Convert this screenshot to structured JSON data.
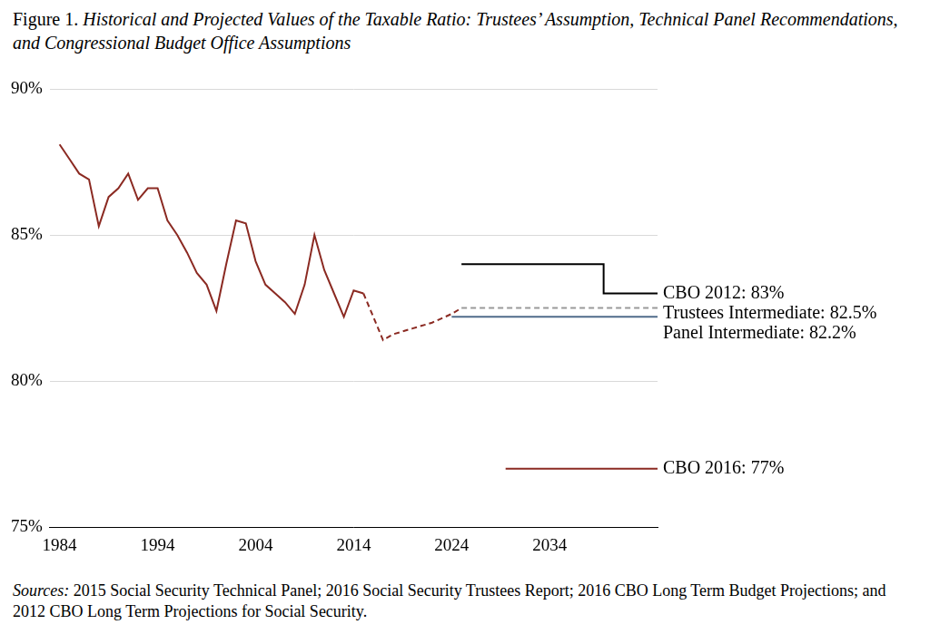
{
  "chart_data": {
    "type": "line",
    "figure_label": "Figure 1.",
    "title": "Historical and Projected Values of the Taxable Ratio: Trustees’ Assumption, Technical Panel Recommendations, and Congressional Budget Office Assumptions",
    "source_label": "Sources:",
    "source": "2015 Social Security Technical Panel; 2016 Social Security Trustees Report; 2016 CBO Long Term Budget Projections; and 2012 CBO Long Term Projections for Social Security.",
    "xlim": [
      1983,
      2045
    ],
    "xticks": [
      1984,
      1994,
      2004,
      2014,
      2024,
      2034
    ],
    "ylim": [
      75,
      90
    ],
    "yticks": [
      {
        "value": 75,
        "label": "75%"
      },
      {
        "value": 80,
        "label": "80%"
      },
      {
        "value": 85,
        "label": "85%"
      },
      {
        "value": 90,
        "label": "90%"
      }
    ],
    "grid": true,
    "series": [
      {
        "color": "#8b2a22",
        "line_style": "solid",
        "x": [
          1984,
          1985,
          1986,
          1987,
          1988,
          1989,
          1990,
          1991,
          1992,
          1993,
          1994,
          1995,
          1996,
          1997,
          1998,
          1999,
          2000,
          2001,
          2002,
          2003,
          2004,
          2005,
          2006,
          2007,
          2008,
          2009,
          2010,
          2011,
          2012,
          2013,
          2014,
          2015
        ],
        "values": [
          88.1,
          87.6,
          87.1,
          86.9,
          85.3,
          86.3,
          86.6,
          87.1,
          86.2,
          86.6,
          86.6,
          85.5,
          85.0,
          84.4,
          83.7,
          83.3,
          82.4,
          84.0,
          85.5,
          85.4,
          84.1,
          83.3,
          83.0,
          82.7,
          82.3,
          83.3,
          85.0,
          83.8,
          83.0,
          82.2,
          83.1,
          83.0
        ]
      },
      {
        "color": "#8b2a22",
        "line_style": "dashed",
        "x": [
          2015,
          2017,
          2018,
          2020,
          2022,
          2024,
          2025
        ],
        "values": [
          83.0,
          81.4,
          81.6,
          81.8,
          82.0,
          82.3,
          82.5
        ]
      },
      {
        "name": "CBO 2012: 83%",
        "color": "#000000",
        "line_style": "solid",
        "x": [
          2025,
          2039.5,
          2039.5,
          2045
        ],
        "values": [
          84,
          84,
          83,
          83
        ]
      },
      {
        "name": "Trustees Intermediate: 82.5%",
        "color": "#999999",
        "line_style": "dashed",
        "x": [
          2025,
          2045
        ],
        "values": [
          82.5,
          82.5
        ]
      },
      {
        "name": "Panel Intermediate: 82.2%",
        "color": "#4f6b8a",
        "line_style": "solid",
        "x": [
          2024,
          2045
        ],
        "values": [
          82.2,
          82.2
        ]
      },
      {
        "name": "CBO 2016: 77%",
        "color": "#8b2a22",
        "line_style": "solid",
        "x": [
          2029.5,
          2045
        ],
        "values": [
          77,
          77
        ]
      }
    ]
  }
}
